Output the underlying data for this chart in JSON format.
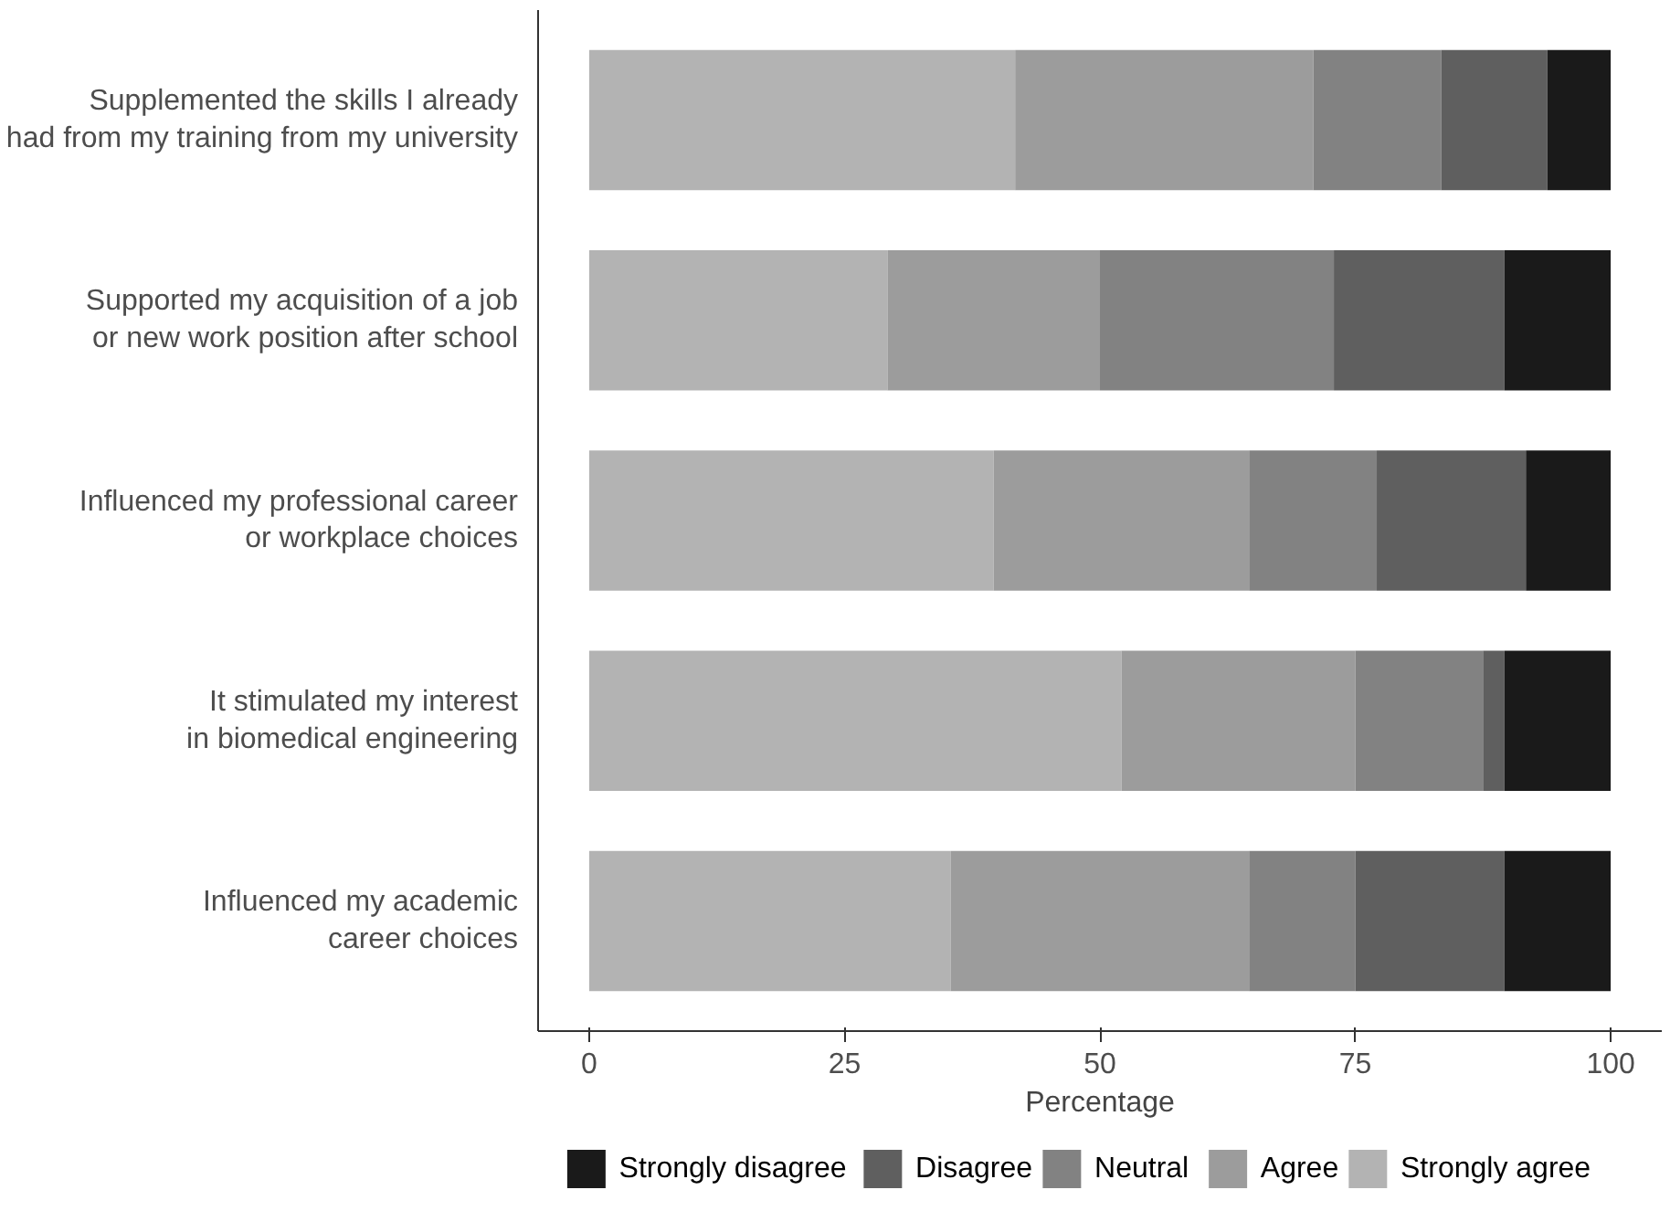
{
  "chart_data": {
    "type": "bar",
    "orientation": "horizontal",
    "stacked": true,
    "xlabel": "Percentage",
    "categories": [
      "Supplemented the skills I already\nhad from my training from my university",
      "Supported my acquisition of a job\nor new work position after school",
      "Influenced my professional career\nor workplace choices",
      "It stimulated my interest\nin biomedical engineering",
      "Influenced my academic\ncareer choices"
    ],
    "series": [
      {
        "name": "Strongly agree",
        "color": "#b3b3b3",
        "values": [
          41.7,
          29.2,
          39.6,
          52.1,
          35.4
        ]
      },
      {
        "name": "Agree",
        "color": "#9c9c9c",
        "values": [
          29.2,
          20.8,
          25.0,
          22.9,
          29.2
        ]
      },
      {
        "name": "Neutral",
        "color": "#828282",
        "values": [
          12.5,
          22.9,
          12.5,
          12.5,
          10.4
        ]
      },
      {
        "name": "Disagree",
        "color": "#5f5f5f",
        "values": [
          10.4,
          16.7,
          14.6,
          2.1,
          14.6
        ]
      },
      {
        "name": "Strongly disagree",
        "color": "#1a1a1a",
        "values": [
          6.2,
          10.4,
          8.3,
          10.4,
          10.4
        ]
      }
    ],
    "xlim": [
      -5,
      105
    ],
    "xticks": [
      0,
      25,
      50,
      75,
      100
    ],
    "grid": false,
    "legend": "bottom"
  }
}
